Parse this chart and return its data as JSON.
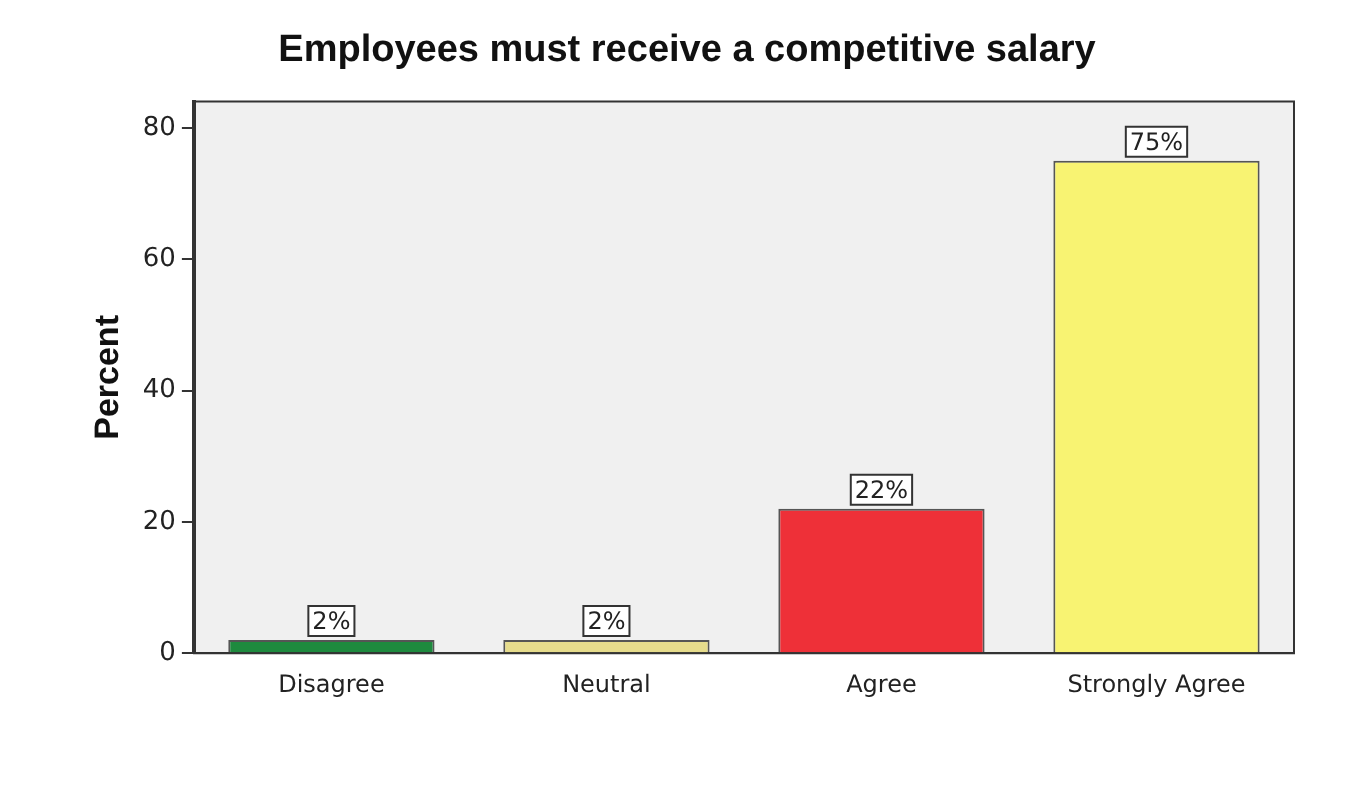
{
  "chart_data": {
    "type": "bar",
    "title": "Employees must receive a competitive salary",
    "ylabel": "Percent",
    "categories": [
      "Disagree",
      "Neutral",
      "Agree",
      "Strongly Agree"
    ],
    "values": [
      2,
      2,
      22,
      75
    ],
    "colors": [
      "#1e8a3e",
      "#e6dc8c",
      "#ee3038",
      "#f8f372"
    ],
    "value_labels": [
      "2%",
      "2%",
      "22%",
      "75%"
    ],
    "ylim": [
      0,
      84
    ],
    "yticks": [
      0,
      20,
      40,
      60,
      80
    ],
    "grid": false,
    "legend": false
  }
}
